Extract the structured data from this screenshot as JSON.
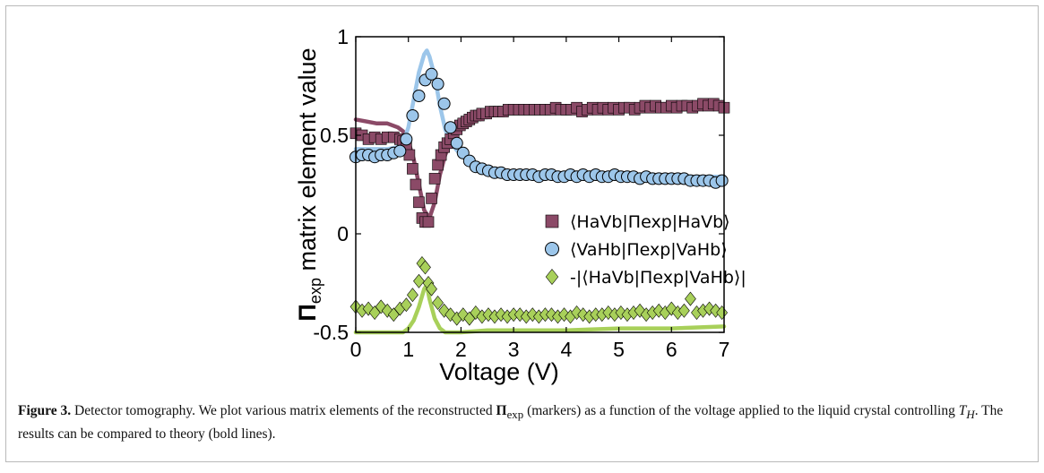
{
  "chart_data": {
    "type": "scatter",
    "xlabel": "Voltage (V)",
    "ylabel": "Πexp matrix element value",
    "ylabel_parts": {
      "symbol": "Π",
      "subscript": "exp",
      "rest": " matrix element value"
    },
    "xlim": [
      0,
      7
    ],
    "ylim": [
      -0.5,
      1
    ],
    "xticks": [
      "0",
      "1",
      "2",
      "3",
      "4",
      "5",
      "6",
      "7"
    ],
    "yticks": [
      "-0.5",
      "0",
      "0.5",
      "1"
    ],
    "grid": false,
    "legend_position": "right-middle",
    "series": [
      {
        "name": "⟨HaVb|Πexp|HaVb⟩",
        "marker": "square",
        "color": "#8b4a67",
        "x": [
          0.0,
          0.12,
          0.24,
          0.36,
          0.48,
          0.6,
          0.72,
          0.84,
          0.9,
          0.96,
          1.02,
          1.08,
          1.14,
          1.2,
          1.26,
          1.32,
          1.38,
          1.44,
          1.5,
          1.56,
          1.62,
          1.68,
          1.74,
          1.8,
          1.86,
          1.92,
          1.98,
          2.04,
          2.1,
          2.16,
          2.22,
          2.28,
          2.34,
          2.4,
          2.48,
          2.56,
          2.64,
          2.72,
          2.8,
          2.9,
          3.0,
          3.1,
          3.2,
          3.3,
          3.4,
          3.5,
          3.6,
          3.7,
          3.8,
          3.9,
          4.0,
          4.1,
          4.2,
          4.3,
          4.4,
          4.5,
          4.6,
          4.7,
          4.8,
          4.9,
          5.0,
          5.1,
          5.2,
          5.3,
          5.4,
          5.5,
          5.6,
          5.7,
          5.8,
          5.9,
          6.0,
          6.1,
          6.2,
          6.3,
          6.4,
          6.5,
          6.6,
          6.7,
          6.8,
          6.9,
          7.0
        ],
        "y": [
          0.51,
          0.5,
          0.48,
          0.49,
          0.48,
          0.49,
          0.49,
          0.48,
          0.47,
          0.45,
          0.4,
          0.33,
          0.25,
          0.16,
          0.08,
          0.06,
          0.06,
          0.18,
          0.28,
          0.35,
          0.4,
          0.44,
          0.46,
          0.48,
          0.51,
          0.53,
          0.55,
          0.56,
          0.57,
          0.58,
          0.59,
          0.6,
          0.6,
          0.61,
          0.61,
          0.62,
          0.62,
          0.62,
          0.62,
          0.63,
          0.63,
          0.63,
          0.63,
          0.63,
          0.63,
          0.63,
          0.63,
          0.63,
          0.64,
          0.63,
          0.63,
          0.63,
          0.64,
          0.62,
          0.63,
          0.64,
          0.63,
          0.64,
          0.63,
          0.64,
          0.63,
          0.64,
          0.64,
          0.63,
          0.64,
          0.65,
          0.64,
          0.65,
          0.64,
          0.64,
          0.65,
          0.64,
          0.65,
          0.65,
          0.64,
          0.65,
          0.66,
          0.65,
          0.66,
          0.65,
          0.64
        ]
      },
      {
        "name": "⟨VaHb|Πexp|VaHb⟩",
        "marker": "circle",
        "color": "#9cc6ea",
        "x": [
          0.0,
          0.12,
          0.24,
          0.36,
          0.48,
          0.6,
          0.72,
          0.84,
          0.96,
          1.08,
          1.2,
          1.32,
          1.44,
          1.56,
          1.68,
          1.8,
          1.92,
          2.04,
          2.16,
          2.28,
          2.4,
          2.52,
          2.64,
          2.76,
          2.88,
          3.0,
          3.12,
          3.24,
          3.36,
          3.48,
          3.6,
          3.72,
          3.84,
          3.96,
          4.08,
          4.2,
          4.32,
          4.44,
          4.56,
          4.68,
          4.8,
          4.92,
          5.04,
          5.16,
          5.28,
          5.4,
          5.52,
          5.64,
          5.76,
          5.88,
          6.0,
          6.12,
          6.24,
          6.36,
          6.48,
          6.6,
          6.72,
          6.84,
          6.96
        ],
        "y": [
          0.39,
          0.4,
          0.4,
          0.39,
          0.4,
          0.4,
          0.41,
          0.42,
          0.48,
          0.6,
          0.7,
          0.78,
          0.81,
          0.76,
          0.66,
          0.54,
          0.46,
          0.41,
          0.37,
          0.34,
          0.33,
          0.32,
          0.31,
          0.31,
          0.3,
          0.3,
          0.3,
          0.3,
          0.3,
          0.29,
          0.3,
          0.3,
          0.29,
          0.29,
          0.3,
          0.29,
          0.3,
          0.29,
          0.3,
          0.29,
          0.29,
          0.3,
          0.29,
          0.29,
          0.29,
          0.28,
          0.29,
          0.28,
          0.28,
          0.28,
          0.28,
          0.28,
          0.28,
          0.27,
          0.27,
          0.27,
          0.27,
          0.26,
          0.27
        ]
      },
      {
        "name": "-|⟨HaVb|Πexp|VaHb⟩|",
        "marker": "diamond",
        "color": "#a8d05a",
        "x": [
          0.0,
          0.12,
          0.24,
          0.36,
          0.48,
          0.6,
          0.72,
          0.84,
          0.96,
          1.08,
          1.2,
          1.26,
          1.32,
          1.38,
          1.44,
          1.56,
          1.68,
          1.8,
          1.92,
          2.04,
          2.16,
          2.28,
          2.4,
          2.52,
          2.64,
          2.76,
          2.88,
          3.0,
          3.12,
          3.24,
          3.36,
          3.48,
          3.6,
          3.72,
          3.84,
          3.96,
          4.08,
          4.2,
          4.32,
          4.44,
          4.56,
          4.68,
          4.8,
          4.92,
          5.04,
          5.16,
          5.28,
          5.4,
          5.52,
          5.64,
          5.76,
          5.88,
          6.0,
          6.12,
          6.24,
          6.36,
          6.48,
          6.6,
          6.72,
          6.84,
          6.96
        ],
        "y": [
          -0.37,
          -0.39,
          -0.38,
          -0.4,
          -0.37,
          -0.39,
          -0.41,
          -0.38,
          -0.36,
          -0.31,
          -0.24,
          -0.15,
          -0.17,
          -0.25,
          -0.28,
          -0.35,
          -0.39,
          -0.41,
          -0.43,
          -0.41,
          -0.43,
          -0.4,
          -0.42,
          -0.41,
          -0.42,
          -0.41,
          -0.42,
          -0.41,
          -0.41,
          -0.42,
          -0.41,
          -0.42,
          -0.41,
          -0.41,
          -0.42,
          -0.41,
          -0.42,
          -0.4,
          -0.41,
          -0.42,
          -0.41,
          -0.41,
          -0.4,
          -0.41,
          -0.4,
          -0.41,
          -0.4,
          -0.39,
          -0.41,
          -0.4,
          -0.39,
          -0.4,
          -0.38,
          -0.4,
          -0.39,
          -0.33,
          -0.4,
          -0.39,
          -0.38,
          -0.39,
          -0.4
        ]
      }
    ],
    "theory_lines": [
      {
        "color": "#8b4a67",
        "x": [
          0,
          0.2,
          0.4,
          0.6,
          0.8,
          0.9,
          1.0,
          1.1,
          1.2,
          1.3,
          1.4,
          1.5,
          1.6,
          1.7,
          1.8,
          1.9,
          2.0,
          2.1,
          2.2,
          2.4,
          2.6,
          2.8,
          3.0,
          3.5,
          4.0,
          4.5,
          5.0,
          5.5,
          6.0,
          6.5,
          7.0
        ],
        "y": [
          0.58,
          0.57,
          0.56,
          0.56,
          0.54,
          0.52,
          0.47,
          0.38,
          0.25,
          0.12,
          0.08,
          0.16,
          0.3,
          0.4,
          0.46,
          0.5,
          0.54,
          0.56,
          0.58,
          0.6,
          0.61,
          0.62,
          0.63,
          0.64,
          0.64,
          0.65,
          0.65,
          0.65,
          0.66,
          0.66,
          0.66
        ]
      },
      {
        "color": "#9cc6ea",
        "x": [
          0,
          0.3,
          0.6,
          0.8,
          0.9,
          1.0,
          1.1,
          1.2,
          1.3,
          1.35,
          1.4,
          1.5,
          1.6,
          1.7,
          1.8,
          1.9,
          2.0,
          2.2,
          2.4,
          2.6,
          3.0,
          3.5,
          4.0,
          4.5,
          5.0,
          5.5,
          6.0,
          6.5,
          7.0
        ],
        "y": [
          0.43,
          0.43,
          0.43,
          0.44,
          0.46,
          0.54,
          0.68,
          0.82,
          0.91,
          0.93,
          0.9,
          0.8,
          0.65,
          0.53,
          0.47,
          0.43,
          0.4,
          0.36,
          0.34,
          0.32,
          0.31,
          0.3,
          0.3,
          0.3,
          0.29,
          0.3,
          0.29,
          0.29,
          0.29
        ]
      },
      {
        "color": "#a8d05a",
        "x": [
          0,
          0.6,
          0.9,
          1.0,
          1.1,
          1.2,
          1.3,
          1.35,
          1.4,
          1.5,
          1.6,
          1.7,
          1.8,
          2.0,
          2.5,
          3.0,
          4.0,
          5.0,
          6.0,
          7.0
        ],
        "y": [
          -0.5,
          -0.5,
          -0.5,
          -0.48,
          -0.44,
          -0.37,
          -0.28,
          -0.26,
          -0.33,
          -0.43,
          -0.48,
          -0.5,
          -0.5,
          -0.5,
          -0.49,
          -0.49,
          -0.49,
          -0.48,
          -0.48,
          -0.47
        ]
      }
    ]
  },
  "caption": {
    "label": "Figure 3.",
    "text_1": " Detector tomography. We plot various matrix elements of the reconstructed ",
    "math_pi": "Π",
    "math_sub": "exp",
    "text_2": " (markers) as a function of the voltage applied to the liquid crystal controlling ",
    "math_T": "T",
    "math_T_sub": "H",
    "text_3": ". The results can be compared to theory (bold lines)."
  }
}
